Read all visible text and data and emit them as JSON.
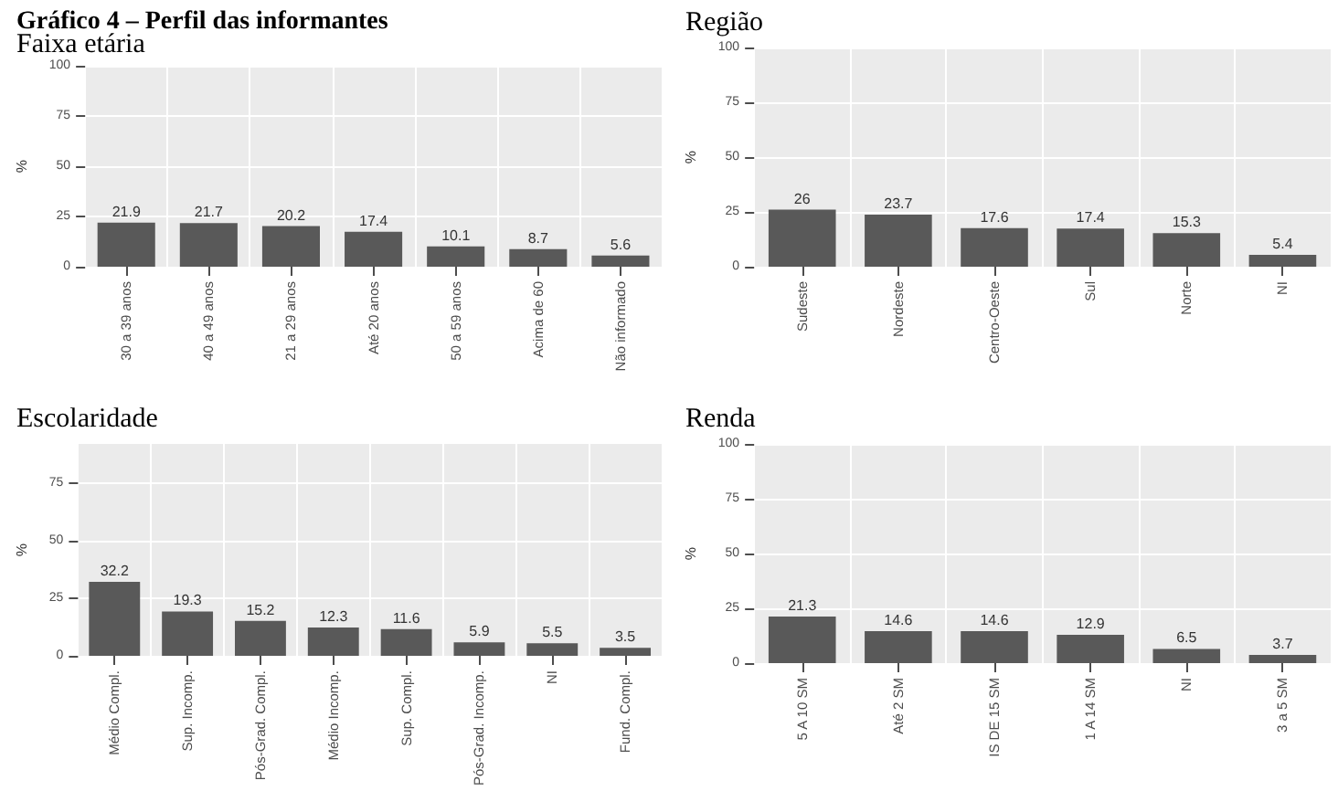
{
  "chart_data": [
    {
      "type": "bar",
      "title": "Gráfico 4 – Perfil das informantes",
      "subtitle": "Faixa etária",
      "ylabel": "%",
      "categories": [
        "30 a 39 anos",
        "40 a 49 anos",
        "21 a 29 anos",
        "Até 20 anos",
        "50 a 59 anos",
        "Acima de 60",
        "Não informado"
      ],
      "values": [
        21.9,
        21.7,
        20.2,
        17.4,
        10.1,
        8.7,
        5.6
      ],
      "color": "#595959",
      "ylim": [
        0,
        100
      ],
      "yticks": [
        0,
        25,
        50,
        75,
        100
      ],
      "grid": true,
      "data_labels": true
    },
    {
      "type": "bar",
      "title": "Região",
      "ylabel": "%",
      "categories": [
        "Sudeste",
        "Nordeste",
        "Centro-Oeste",
        "Sul",
        "Norte",
        "NI"
      ],
      "values": [
        26,
        23.7,
        17.6,
        17.4,
        15.3,
        5.4
      ],
      "color": "#595959",
      "ylim": [
        0,
        100
      ],
      "yticks": [
        0,
        25,
        50,
        75,
        100
      ],
      "grid": true,
      "data_labels": true
    },
    {
      "type": "bar",
      "title": "Escolaridade",
      "ylabel": "%",
      "categories": [
        "Médio Compl.",
        "Sup. Incomp.",
        "Pós-Grad. Compl.",
        "Médio Incomp.",
        "Sup. Compl.",
        "Pós-Grad. Incomp.",
        "NI",
        "Fund. Compl."
      ],
      "values": [
        32.2,
        19.3,
        15.2,
        12.3,
        11.6,
        5.9,
        5.5,
        3.5
      ],
      "color": "#595959",
      "ylim": [
        0,
        92
      ],
      "yticks": [
        0,
        25,
        50,
        75
      ],
      "grid": true,
      "data_labels": true
    },
    {
      "type": "bar",
      "title": "Renda",
      "ylabel": "%",
      "categories": [
        "5 A 10 SM",
        "Até 2 SM",
        "IS DE 15 SM",
        "1 A 14 SM",
        "NI",
        "3 a 5 SM"
      ],
      "values": [
        21.3,
        14.6,
        14.6,
        12.9,
        6.5,
        3.7
      ],
      "color": "#595959",
      "ylim": [
        0,
        100
      ],
      "yticks": [
        0,
        25,
        50,
        75,
        100
      ],
      "grid": true,
      "data_labels": true
    }
  ]
}
